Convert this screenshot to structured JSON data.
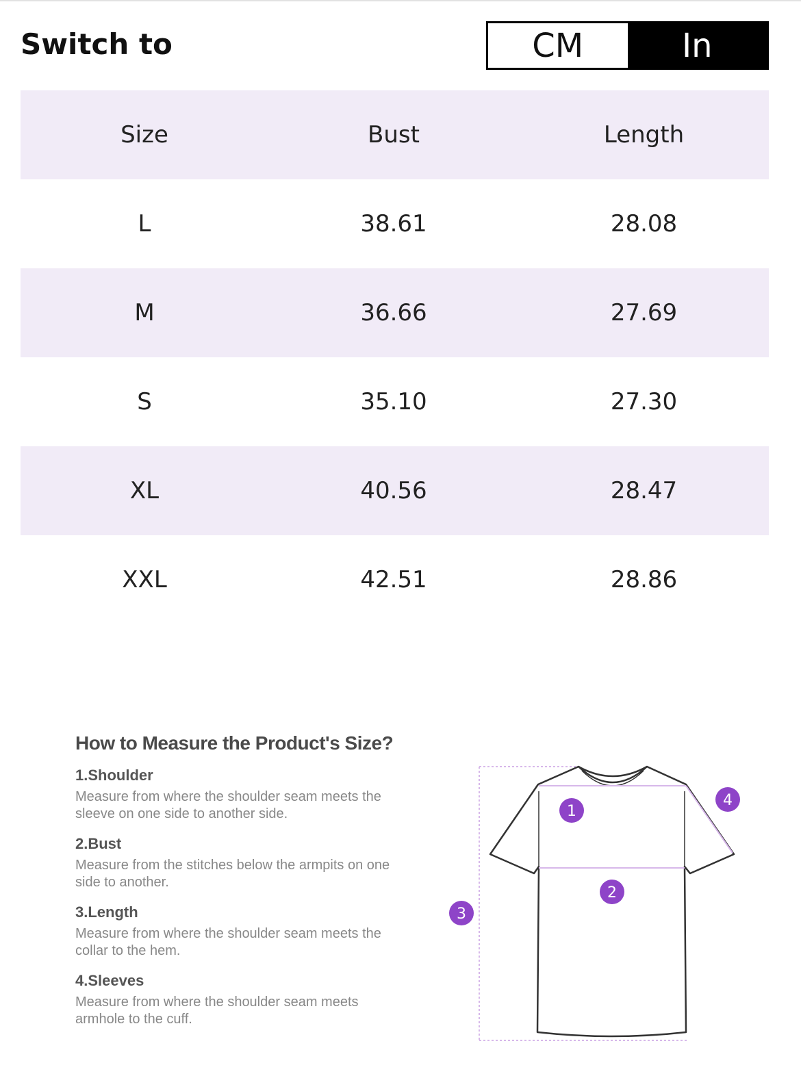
{
  "header": {
    "switch_label": "Switch to",
    "units": [
      {
        "label": "CM",
        "selected": false
      },
      {
        "label": "In",
        "selected": true
      }
    ]
  },
  "size_table": {
    "columns": [
      "Size",
      "Bust",
      "Length"
    ],
    "rows": [
      [
        "L",
        "38.61",
        "28.08"
      ],
      [
        "M",
        "36.66",
        "27.69"
      ],
      [
        "S",
        "35.10",
        "27.30"
      ],
      [
        "XL",
        "40.56",
        "28.47"
      ],
      [
        "XXL",
        "42.51",
        "28.86"
      ]
    ]
  },
  "measure_guide": {
    "title": "How to Measure the Product's Size?",
    "steps": [
      {
        "title": "1.Shoulder",
        "desc": "Measure from where the shoulder seam meets the sleeve on one side to another side."
      },
      {
        "title": "2.Bust",
        "desc": "Measure from the stitches below the armpits on one side to another."
      },
      {
        "title": "3.Length",
        "desc": "Measure from where the shoulder seam meets the collar to the hem."
      },
      {
        "title": "4.Sleeves",
        "desc": "Measure from where the shoulder seam meets armhole to the cuff."
      }
    ],
    "markers": [
      "1",
      "2",
      "3",
      "4"
    ]
  },
  "colors": {
    "row_shade": "#f1ebf7",
    "marker": "#8e44c8",
    "guide_line": "#d7b8ea"
  }
}
